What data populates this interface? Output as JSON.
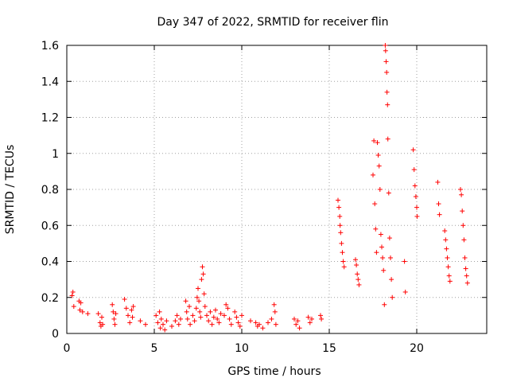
{
  "chart_data": {
    "type": "scatter",
    "title": "Day 347 of 2022, SRMTID for receiver flin",
    "xlabel": "GPS time / hours",
    "ylabel": "SRMTID / TECUs",
    "xlim": [
      0,
      24
    ],
    "ylim": [
      0,
      1.6
    ],
    "xticks": [
      0,
      5,
      10,
      15,
      20
    ],
    "xtick_labels": [
      "0",
      "5",
      "10",
      "15",
      "20"
    ],
    "yticks": [
      0,
      0.2,
      0.4,
      0.6,
      0.8,
      1.0,
      1.2,
      1.4,
      1.6
    ],
    "ytick_labels": [
      "0",
      "0.2",
      "0.4",
      "0.6",
      "0.8",
      "1",
      "1.2",
      "1.4",
      "1.6"
    ],
    "grid": true,
    "marker": "+",
    "color": "#ff0000",
    "series": [
      {
        "name": "SRMTID",
        "points": [
          [
            0.3,
            0.21
          ],
          [
            0.35,
            0.23
          ],
          [
            0.4,
            0.15
          ],
          [
            0.7,
            0.18
          ],
          [
            0.75,
            0.13
          ],
          [
            0.8,
            0.17
          ],
          [
            0.9,
            0.12
          ],
          [
            1.2,
            0.11
          ],
          [
            1.8,
            0.11
          ],
          [
            1.9,
            0.06
          ],
          [
            1.95,
            0.04
          ],
          [
            2.0,
            0.09
          ],
          [
            2.05,
            0.05
          ],
          [
            2.6,
            0.16
          ],
          [
            2.65,
            0.12
          ],
          [
            2.7,
            0.08
          ],
          [
            2.75,
            0.05
          ],
          [
            2.8,
            0.11
          ],
          [
            3.3,
            0.19
          ],
          [
            3.4,
            0.14
          ],
          [
            3.5,
            0.1
          ],
          [
            3.6,
            0.06
          ],
          [
            3.7,
            0.13
          ],
          [
            3.75,
            0.09
          ],
          [
            3.8,
            0.15
          ],
          [
            4.2,
            0.07
          ],
          [
            4.5,
            0.05
          ],
          [
            5.1,
            0.1
          ],
          [
            5.2,
            0.06
          ],
          [
            5.3,
            0.12
          ],
          [
            5.35,
            0.03
          ],
          [
            5.4,
            0.08
          ],
          [
            5.5,
            0.05
          ],
          [
            5.6,
            0.02
          ],
          [
            5.7,
            0.07
          ],
          [
            6.0,
            0.04
          ],
          [
            6.2,
            0.07
          ],
          [
            6.3,
            0.1
          ],
          [
            6.4,
            0.05
          ],
          [
            6.5,
            0.08
          ],
          [
            6.8,
            0.18
          ],
          [
            6.85,
            0.12
          ],
          [
            6.9,
            0.08
          ],
          [
            7.0,
            0.15
          ],
          [
            7.05,
            0.05
          ],
          [
            7.2,
            0.1
          ],
          [
            7.3,
            0.07
          ],
          [
            7.4,
            0.14
          ],
          [
            7.45,
            0.2
          ],
          [
            7.5,
            0.25
          ],
          [
            7.55,
            0.18
          ],
          [
            7.6,
            0.12
          ],
          [
            7.65,
            0.09
          ],
          [
            7.7,
            0.3
          ],
          [
            7.75,
            0.37
          ],
          [
            7.8,
            0.33
          ],
          [
            7.85,
            0.22
          ],
          [
            7.9,
            0.15
          ],
          [
            8.0,
            0.1
          ],
          [
            8.1,
            0.07
          ],
          [
            8.2,
            0.12
          ],
          [
            8.3,
            0.05
          ],
          [
            8.4,
            0.09
          ],
          [
            8.5,
            0.13
          ],
          [
            8.6,
            0.08
          ],
          [
            8.7,
            0.06
          ],
          [
            8.8,
            0.11
          ],
          [
            9.0,
            0.1
          ],
          [
            9.1,
            0.16
          ],
          [
            9.2,
            0.14
          ],
          [
            9.3,
            0.08
          ],
          [
            9.4,
            0.05
          ],
          [
            9.6,
            0.12
          ],
          [
            9.7,
            0.09
          ],
          [
            9.8,
            0.06
          ],
          [
            9.9,
            0.04
          ],
          [
            10.0,
            0.1
          ],
          [
            10.5,
            0.07
          ],
          [
            10.8,
            0.06
          ],
          [
            10.9,
            0.04
          ],
          [
            11.0,
            0.05
          ],
          [
            11.2,
            0.03
          ],
          [
            11.5,
            0.06
          ],
          [
            11.7,
            0.08
          ],
          [
            11.85,
            0.16
          ],
          [
            11.9,
            0.12
          ],
          [
            11.95,
            0.05
          ],
          [
            13.0,
            0.08
          ],
          [
            13.1,
            0.05
          ],
          [
            13.2,
            0.07
          ],
          [
            13.3,
            0.03
          ],
          [
            13.8,
            0.09
          ],
          [
            13.9,
            0.06
          ],
          [
            14.0,
            0.08
          ],
          [
            14.5,
            0.1
          ],
          [
            14.55,
            0.08
          ],
          [
            15.5,
            0.74
          ],
          [
            15.55,
            0.7
          ],
          [
            15.6,
            0.65
          ],
          [
            15.62,
            0.6
          ],
          [
            15.65,
            0.56
          ],
          [
            15.7,
            0.5
          ],
          [
            15.75,
            0.45
          ],
          [
            15.8,
            0.4
          ],
          [
            15.85,
            0.37
          ],
          [
            16.5,
            0.41
          ],
          [
            16.55,
            0.38
          ],
          [
            16.6,
            0.33
          ],
          [
            16.65,
            0.3
          ],
          [
            16.7,
            0.27
          ],
          [
            17.5,
            0.88
          ],
          [
            17.55,
            1.07
          ],
          [
            17.6,
            0.72
          ],
          [
            17.65,
            0.58
          ],
          [
            17.7,
            0.45
          ],
          [
            17.75,
            1.06
          ],
          [
            17.8,
            0.99
          ],
          [
            17.85,
            0.93
          ],
          [
            17.9,
            0.8
          ],
          [
            17.95,
            0.55
          ],
          [
            18.0,
            0.48
          ],
          [
            18.05,
            0.42
          ],
          [
            18.1,
            0.35
          ],
          [
            18.15,
            0.16
          ],
          [
            18.2,
            1.6
          ],
          [
            18.22,
            1.57
          ],
          [
            18.25,
            1.51
          ],
          [
            18.28,
            1.45
          ],
          [
            18.3,
            1.34
          ],
          [
            18.33,
            1.27
          ],
          [
            18.35,
            1.08
          ],
          [
            18.4,
            0.78
          ],
          [
            18.45,
            0.53
          ],
          [
            18.5,
            0.42
          ],
          [
            18.55,
            0.3
          ],
          [
            18.6,
            0.2
          ],
          [
            19.3,
            0.4
          ],
          [
            19.35,
            0.23
          ],
          [
            19.8,
            1.02
          ],
          [
            19.85,
            0.91
          ],
          [
            19.9,
            0.82
          ],
          [
            19.95,
            0.76
          ],
          [
            20.0,
            0.7
          ],
          [
            20.02,
            0.65
          ],
          [
            21.2,
            0.84
          ],
          [
            21.25,
            0.72
          ],
          [
            21.3,
            0.66
          ],
          [
            21.6,
            0.57
          ],
          [
            21.65,
            0.52
          ],
          [
            21.7,
            0.47
          ],
          [
            21.75,
            0.42
          ],
          [
            21.8,
            0.37
          ],
          [
            21.85,
            0.32
          ],
          [
            21.9,
            0.29
          ],
          [
            22.5,
            0.8
          ],
          [
            22.55,
            0.77
          ],
          [
            22.6,
            0.68
          ],
          [
            22.65,
            0.6
          ],
          [
            22.7,
            0.52
          ],
          [
            22.75,
            0.42
          ],
          [
            22.8,
            0.36
          ],
          [
            22.85,
            0.32
          ],
          [
            22.9,
            0.28
          ]
        ]
      }
    ]
  }
}
